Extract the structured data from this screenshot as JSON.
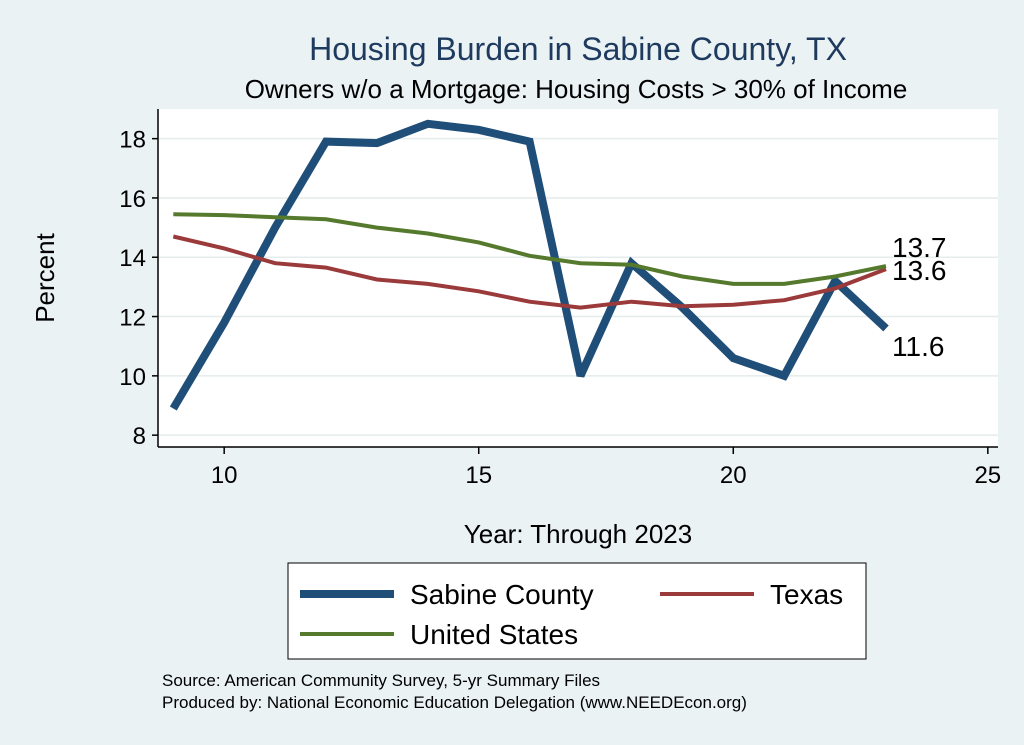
{
  "chart_data": {
    "type": "line",
    "title": "Housing Burden in Sabine County, TX",
    "subtitle": "Owners w/o a Mortgage: Housing Costs > 30% of Income",
    "xlabel": "Year: Through 2023",
    "ylabel": "Percent",
    "xlim": [
      8.7,
      25.2
    ],
    "ylim": [
      7.6,
      19.0
    ],
    "xticks": [
      10,
      15,
      20,
      25
    ],
    "yticks": [
      8,
      10,
      12,
      14,
      16,
      18
    ],
    "grid": true,
    "legend_position": "bottom",
    "series": [
      {
        "name": "Sabine County",
        "color": "#1f4e79",
        "x": [
          9,
          10,
          11,
          12,
          13,
          14,
          15,
          16,
          17,
          18,
          19,
          20,
          21,
          22,
          23
        ],
        "values": [
          8.9,
          11.8,
          15.0,
          17.9,
          17.85,
          18.5,
          18.3,
          17.9,
          10.0,
          13.8,
          12.3,
          10.6,
          10.0,
          13.2,
          11.6
        ],
        "end_label": "11.6"
      },
      {
        "name": "Texas",
        "color": "#9b3a3a",
        "x": [
          9,
          10,
          11,
          12,
          13,
          14,
          15,
          16,
          17,
          18,
          19,
          20,
          21,
          22,
          23
        ],
        "values": [
          14.7,
          14.3,
          13.8,
          13.65,
          13.25,
          13.1,
          12.85,
          12.5,
          12.3,
          12.5,
          12.35,
          12.4,
          12.55,
          12.95,
          13.6
        ],
        "end_label": "13.6"
      },
      {
        "name": "United States",
        "color": "#557a2d",
        "x": [
          9,
          10,
          11,
          12,
          13,
          14,
          15,
          16,
          17,
          18,
          19,
          20,
          21,
          22,
          23
        ],
        "values": [
          15.45,
          15.42,
          15.35,
          15.28,
          15.0,
          14.8,
          14.5,
          14.05,
          13.8,
          13.75,
          13.35,
          13.1,
          13.1,
          13.35,
          13.7
        ],
        "end_label": "13.7"
      }
    ]
  },
  "source": {
    "line1": "Source: American Community Survey, 5-yr Summary Files",
    "line2": "Produced by: National Economic Education Delegation (www.NEEDEcon.org)"
  }
}
